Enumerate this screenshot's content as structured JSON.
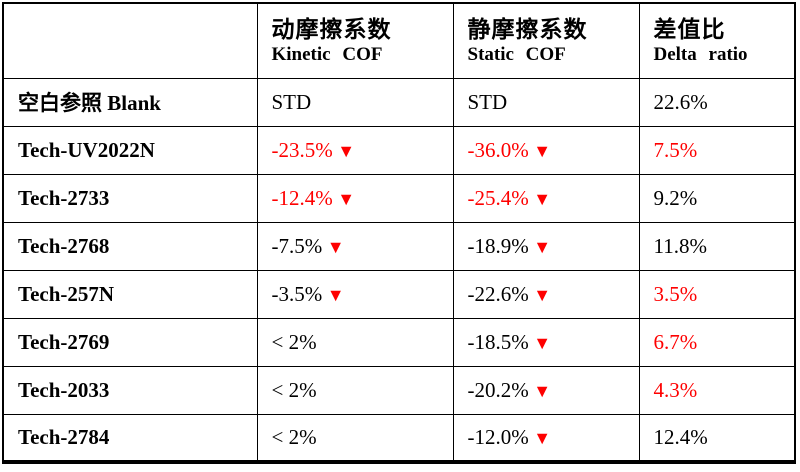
{
  "colors": {
    "red": "#fe0000",
    "black": "#000000",
    "border": "#000000",
    "background": "#ffffff"
  },
  "table": {
    "columns": [
      {
        "zh": "",
        "en": ""
      },
      {
        "zh": "动摩擦系数",
        "en": "Kinetic COF"
      },
      {
        "zh": "静摩擦系数",
        "en": "Static COF"
      },
      {
        "zh": "差值比",
        "en": "Delta ratio"
      }
    ],
    "rows": [
      {
        "label": "空白参照 Blank",
        "kinetic": {
          "text": "STD",
          "color": "#000000",
          "arrow": ""
        },
        "static": {
          "text": "STD",
          "color": "#000000",
          "arrow": ""
        },
        "delta": {
          "text": "22.6%",
          "color": "#000000",
          "arrow": ""
        }
      },
      {
        "label": "Tech-UV2022N",
        "kinetic": {
          "text": "-23.5%",
          "color": "#fe0000",
          "arrow": "▼"
        },
        "static": {
          "text": "-36.0%",
          "color": "#fe0000",
          "arrow": "▼"
        },
        "delta": {
          "text": "7.5%",
          "color": "#fe0000",
          "arrow": ""
        }
      },
      {
        "label": "Tech-2733",
        "kinetic": {
          "text": "-12.4%",
          "color": "#fe0000",
          "arrow": "▼"
        },
        "static": {
          "text": "-25.4%",
          "color": "#fe0000",
          "arrow": "▼"
        },
        "delta": {
          "text": "9.2%",
          "color": "#000000",
          "arrow": ""
        }
      },
      {
        "label": "Tech-2768",
        "kinetic": {
          "text": "-7.5%",
          "color": "#000000",
          "arrow": "▼"
        },
        "static": {
          "text": "-18.9%",
          "color": "#000000",
          "arrow": "▼"
        },
        "delta": {
          "text": "11.8%",
          "color": "#000000",
          "arrow": ""
        }
      },
      {
        "label": "Tech-257N",
        "kinetic": {
          "text": "-3.5%",
          "color": "#000000",
          "arrow": "▼"
        },
        "static": {
          "text": "-22.6%",
          "color": "#000000",
          "arrow": "▼"
        },
        "delta": {
          "text": "3.5%",
          "color": "#fe0000",
          "arrow": ""
        }
      },
      {
        "label": "Tech-2769",
        "kinetic": {
          "text": "< 2%",
          "color": "#000000",
          "arrow": ""
        },
        "static": {
          "text": "-18.5%",
          "color": "#000000",
          "arrow": "▼"
        },
        "delta": {
          "text": "6.7%",
          "color": "#fe0000",
          "arrow": ""
        }
      },
      {
        "label": "Tech-2033",
        "kinetic": {
          "text": "< 2%",
          "color": "#000000",
          "arrow": ""
        },
        "static": {
          "text": "-20.2%",
          "color": "#000000",
          "arrow": "▼"
        },
        "delta": {
          "text": "4.3%",
          "color": "#fe0000",
          "arrow": ""
        }
      },
      {
        "label": "Tech-2784",
        "kinetic": {
          "text": "< 2%",
          "color": "#000000",
          "arrow": ""
        },
        "static": {
          "text": "-12.0%",
          "color": "#000000",
          "arrow": "▼"
        },
        "delta": {
          "text": "12.4%",
          "color": "#000000",
          "arrow": ""
        }
      }
    ]
  }
}
